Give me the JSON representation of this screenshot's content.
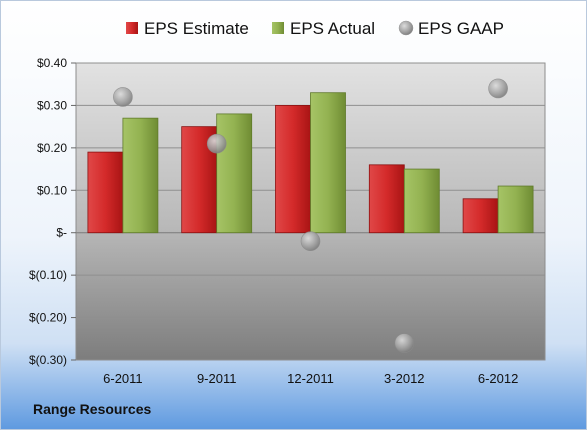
{
  "chart_data": {
    "type": "bar",
    "categories": [
      "6-2011",
      "9-2011",
      "12-2011",
      "3-2012",
      "6-2012"
    ],
    "series": [
      {
        "name": "EPS Estimate",
        "kind": "bar",
        "color": "#cc2222",
        "values": [
          0.19,
          0.25,
          0.3,
          0.16,
          0.08
        ]
      },
      {
        "name": "EPS Actual",
        "kind": "bar",
        "color": "#8fb04a",
        "values": [
          0.27,
          0.28,
          0.33,
          0.15,
          0.11
        ]
      },
      {
        "name": "EPS GAAP",
        "kind": "scatter",
        "color": "#a9a9a9",
        "values": [
          0.32,
          0.21,
          -0.02,
          -0.26,
          0.34
        ]
      }
    ],
    "yticks": [
      {
        "value": 0.4,
        "label": "$0.40"
      },
      {
        "value": 0.3,
        "label": "$0.30"
      },
      {
        "value": 0.2,
        "label": "$0.20"
      },
      {
        "value": 0.1,
        "label": "$0.10"
      },
      {
        "value": 0.0,
        "label": "$-"
      },
      {
        "value": -0.1,
        "label": "$(0.10)"
      },
      {
        "value": -0.2,
        "label": "$(0.20)"
      },
      {
        "value": -0.3,
        "label": "$(0.30)"
      }
    ],
    "ylim": [
      -0.3,
      0.4
    ],
    "grid": true,
    "legend": "top",
    "footer": "Range Resources"
  }
}
